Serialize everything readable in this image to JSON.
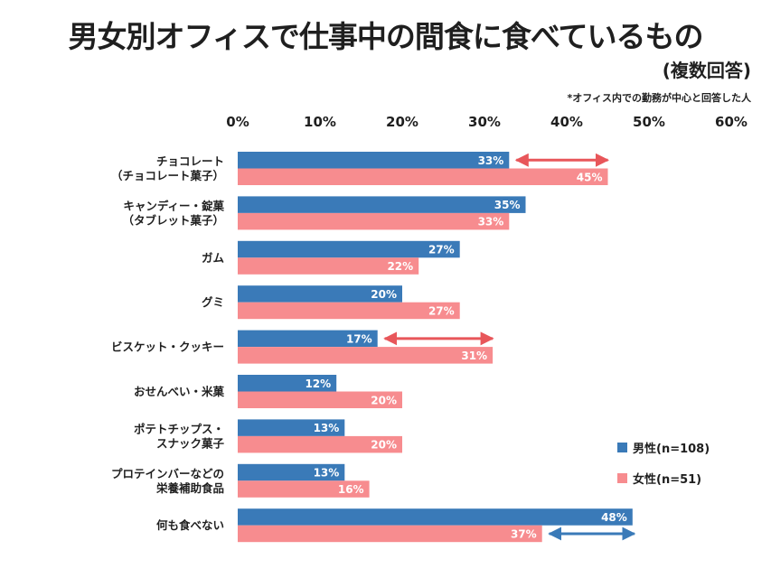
{
  "header": {
    "title": "男女別オフィスで仕事中の間食に食べているもの",
    "subtitle": "(複数回答)",
    "note": "*オフィス内での勤務が中心と回答した人"
  },
  "colors": {
    "male": "#3a7ab8",
    "female": "#f78c8f",
    "arrow_red": "#e8565a",
    "arrow_blue": "#3a7ab8"
  },
  "chart_data": {
    "type": "bar",
    "orientation": "horizontal",
    "x_ticks": [
      "0%",
      "10%",
      "20%",
      "30%",
      "40%",
      "50%",
      "60%"
    ],
    "xlim": [
      0,
      60
    ],
    "categories": [
      [
        "チョコレート",
        "（チョコレート菓子）"
      ],
      [
        "キャンディー・錠菓",
        "（タブレット菓子）"
      ],
      [
        "ガム"
      ],
      [
        "グミ"
      ],
      [
        "ビスケット・クッキー"
      ],
      [
        "おせんべい・米菓"
      ],
      [
        "ポテトチップス・",
        "スナック菓子"
      ],
      [
        "プロテインバーなどの",
        "栄養補助食品"
      ],
      [
        "何も食べない"
      ]
    ],
    "series": [
      {
        "name": "男性(n=108)",
        "values": [
          33,
          35,
          27,
          20,
          17,
          12,
          13,
          13,
          48
        ],
        "labels": [
          "33%",
          "35%",
          "27%",
          "20%",
          "17%",
          "12%",
          "13%",
          "13%",
          "48%"
        ]
      },
      {
        "name": "女性(n=51)",
        "values": [
          45,
          33,
          22,
          27,
          31,
          20,
          20,
          16,
          37
        ],
        "labels": [
          "45%",
          "33%",
          "22%",
          "27%",
          "31%",
          "20%",
          "20%",
          "16%",
          "37%"
        ]
      }
    ],
    "arrows": [
      {
        "category": 0,
        "from": 33,
        "to": 45,
        "color": "arrow_red"
      },
      {
        "category": 4,
        "from": 17,
        "to": 31,
        "color": "arrow_red"
      },
      {
        "category": 8,
        "from": 37,
        "to": 48,
        "color": "arrow_blue"
      }
    ],
    "legend_position": "right"
  }
}
